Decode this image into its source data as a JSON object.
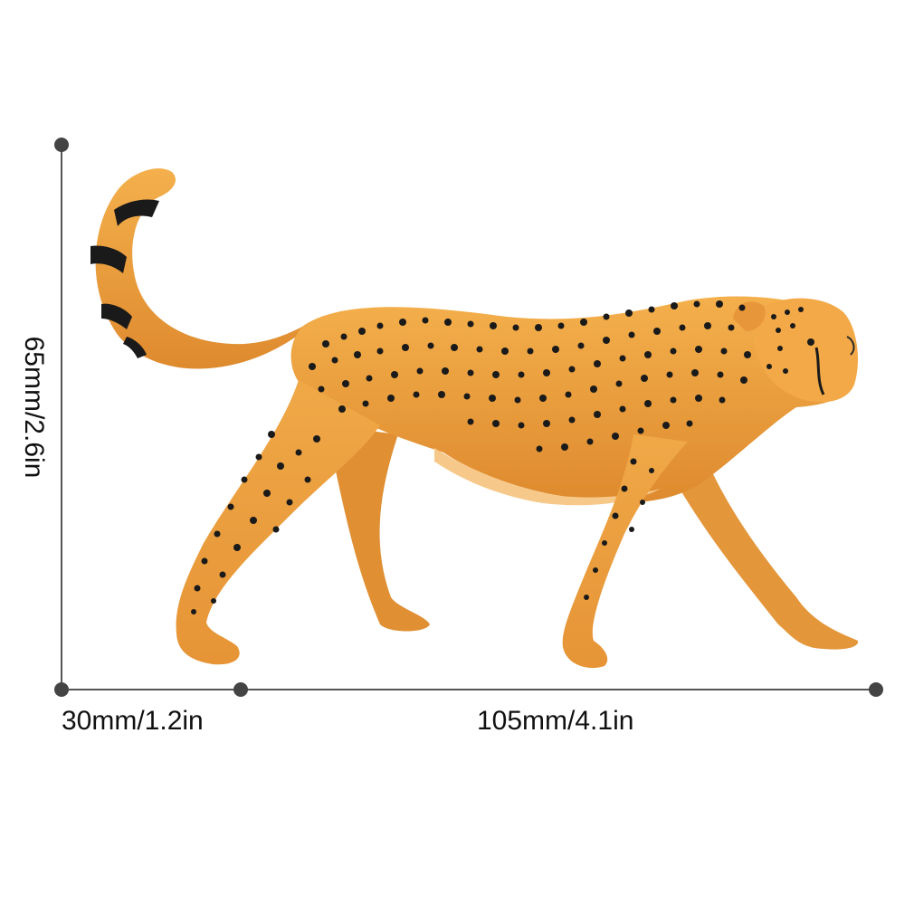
{
  "dimensions": {
    "height_label": "65mm/2.6in",
    "depth_label": "30mm/1.2in",
    "length_label": "105mm/4.1in"
  },
  "product": {
    "subject": "cheetah-figurine"
  },
  "colors": {
    "background": "#ffffff",
    "dimension_line": "#555555",
    "dimension_dot": "#444444",
    "fur_light": "#f2a945",
    "fur_dark": "#d9822b",
    "fur_belly": "#f6c98a",
    "spots": "#1a1a1a"
  }
}
